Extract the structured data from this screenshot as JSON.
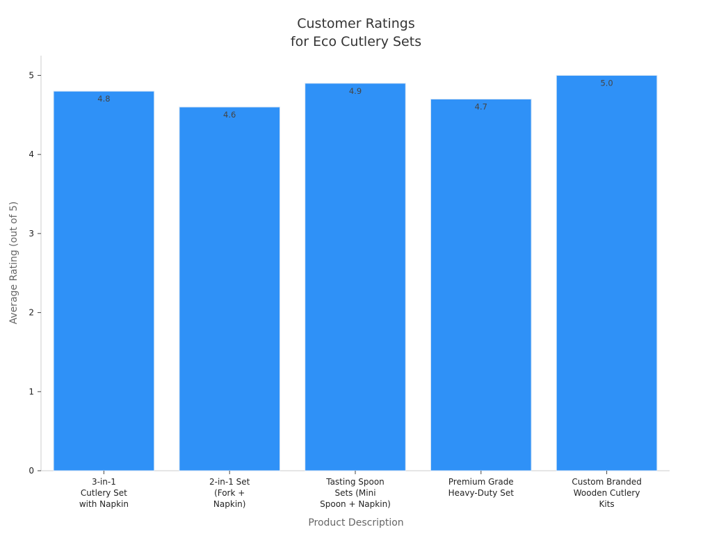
{
  "chart_data": {
    "type": "bar",
    "title": "Customer Ratings\nfor Eco Cutlery Sets",
    "x_label": "Product Description",
    "y_label": "Average Rating (out of 5)",
    "categories": [
      "3-in-1\nCutlery Set\nwith Napkin",
      "2-in-1 Set\n(Fork +\nNapkin)",
      "Tasting Spoon\nSets (Mini\nSpoon + Napkin)",
      "Premium Grade\nHeavy-Duty Set",
      "Custom Branded\nWooden Cutlery\nKits"
    ],
    "values": [
      4.8,
      4.6,
      4.9,
      4.7,
      5.0
    ],
    "value_labels": [
      "4.8",
      "4.6",
      "4.9",
      "4.7",
      "5.0"
    ],
    "color": "#2f91f7",
    "ylim": [
      0,
      5.25
    ],
    "yticks": [
      0,
      1,
      2,
      3,
      4,
      5
    ],
    "grid": false
  }
}
